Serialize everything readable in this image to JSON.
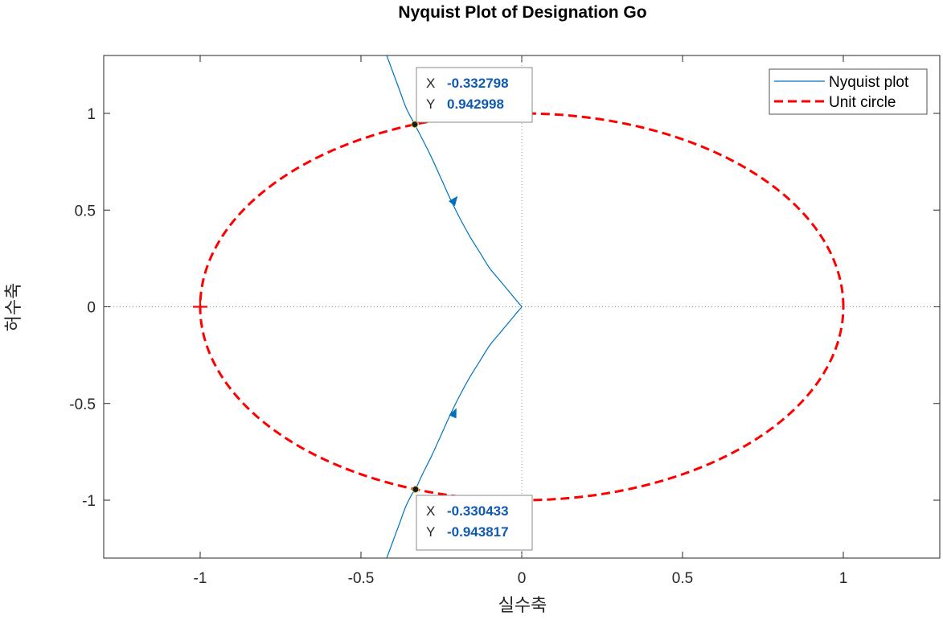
{
  "chart_data": {
    "type": "line",
    "title": "Nyquist Plot of Designation Go",
    "xlabel": "실수축",
    "ylabel": "허수축",
    "xlim": [
      -1.0,
      1.3
    ],
    "ylim": [
      -1.3,
      1.3
    ],
    "xticks": [
      -1,
      -0.5,
      0,
      0.5,
      1
    ],
    "xtick_labels": [
      "-1",
      "-0.5",
      "0",
      "0.5",
      "1"
    ],
    "yticks": [
      -1,
      -0.5,
      0,
      0.5,
      1
    ],
    "ytick_labels": [
      "-1",
      "-0.5",
      "0",
      "0.5",
      "1"
    ],
    "legend_position": "top-right",
    "series": [
      {
        "name": "Nyquist plot",
        "color": "#0072BD",
        "style": "solid",
        "x": [
          -0.42,
          -0.4,
          -0.38,
          -0.36,
          -0.34,
          -0.3328,
          -0.31,
          -0.28,
          -0.25,
          -0.22,
          -0.19,
          -0.16,
          -0.13,
          -0.1,
          -0.07,
          -0.045,
          -0.025,
          -0.01,
          -0.002,
          0,
          -0.002,
          -0.01,
          -0.025,
          -0.045,
          -0.07,
          -0.1,
          -0.13,
          -0.16,
          -0.19,
          -0.22,
          -0.25,
          -0.28,
          -0.31,
          -0.3304,
          -0.34,
          -0.36,
          -0.38,
          -0.4,
          -0.42
        ],
        "y": [
          1.3,
          1.21,
          1.12,
          1.03,
          0.965,
          0.943,
          0.87,
          0.77,
          0.66,
          0.55,
          0.45,
          0.36,
          0.28,
          0.2,
          0.14,
          0.09,
          0.05,
          0.02,
          0.005,
          0,
          -0.005,
          -0.02,
          -0.05,
          -0.09,
          -0.14,
          -0.2,
          -0.28,
          -0.36,
          -0.45,
          -0.55,
          -0.66,
          -0.77,
          -0.87,
          -0.9438,
          -0.965,
          -1.03,
          -1.12,
          -1.21,
          -1.3
        ]
      },
      {
        "name": "Unit circle",
        "color": "#FF0000",
        "style": "dashed",
        "parametric": "cos(t), sin(t), t in [0, 2pi]"
      }
    ],
    "direction_arrows": [
      {
        "x": -0.21,
        "y": 0.55
      },
      {
        "x": -0.21,
        "y": -0.55
      }
    ],
    "critical_point_marker": {
      "x": -1,
      "y": 0,
      "symbol": "+",
      "color": "#FF0000"
    },
    "datatips": [
      {
        "x_key": "X",
        "x_value": "-0.332798",
        "y_key": "Y",
        "y_value": "0.942998",
        "point": {
          "x": -0.332798,
          "y": 0.942998
        }
      },
      {
        "x_key": "X",
        "x_value": "-0.330433",
        "y_key": "Y",
        "y_value": "-0.943817",
        "point": {
          "x": -0.330433,
          "y": -0.943817
        }
      }
    ],
    "grid": "zero-lines-dotted"
  }
}
